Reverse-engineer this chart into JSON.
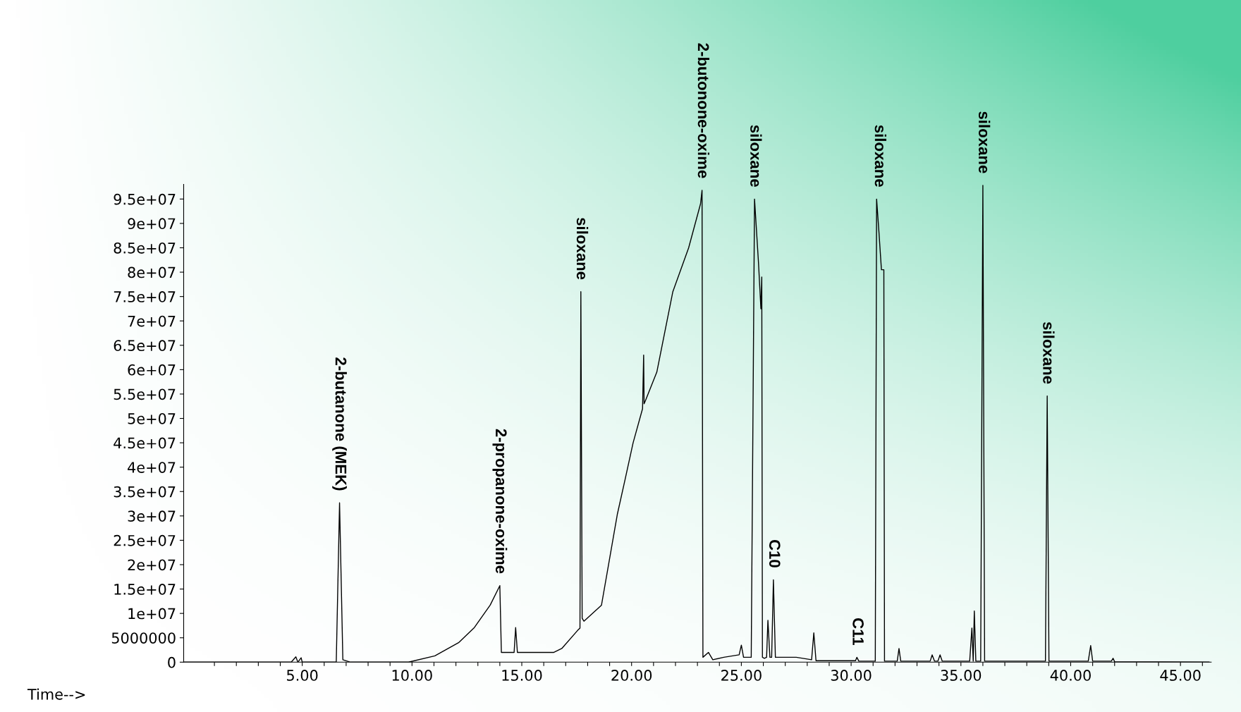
{
  "chart_data": {
    "type": "line",
    "xlabel": "Time-->",
    "x": [
      -0.4,
      4.5,
      4.71,
      4.8,
      4.95,
      5.0,
      5.1,
      6.55,
      6.7,
      6.85,
      7.2,
      9.84,
      11.04,
      12.12,
      12.84,
      13.56,
      14.0,
      14.07,
      14.5,
      14.65,
      14.72,
      14.8,
      16.46,
      16.82,
      17.54,
      17.65,
      17.69,
      17.75,
      17.83,
      18.63,
      18.99,
      19.35,
      19.71,
      20.07,
      20.5,
      20.55,
      20.57,
      20.62,
      21.15,
      21.88,
      22.6,
      23.14,
      23.21,
      23.25,
      23.5,
      23.7,
      24.2,
      24.9,
      25.0,
      25.1,
      25.45,
      25.6,
      25.78,
      25.89,
      25.93,
      25.96,
      26.05,
      26.15,
      26.21,
      26.3,
      26.38,
      26.46,
      26.55,
      27.5,
      28.2,
      28.3,
      28.4,
      30.2,
      30.26,
      30.35,
      31.1,
      31.16,
      31.27,
      31.38,
      31.49,
      31.52,
      31.6,
      32.1,
      32.18,
      32.26,
      33.6,
      33.69,
      33.8,
      33.95,
      34.05,
      34.15,
      35.4,
      35.5,
      35.56,
      35.61,
      35.68,
      35.9,
      36.0,
      36.08,
      38.85,
      38.93,
      39.01,
      40.8,
      40.91,
      41.0,
      41.85,
      41.93,
      42.0,
      46.3
    ],
    "values": [
      0,
      0,
      1100000,
      0,
      900000,
      0,
      0,
      0,
      32700000,
      500000,
      0,
      0,
      1300000,
      4000000,
      7100000,
      11700000,
      15700000,
      2000000,
      2000000,
      2000000,
      7100000,
      2000000,
      2000000,
      2800000,
      6500000,
      7000000,
      76000000,
      9000000,
      8400000,
      11700000,
      21000000,
      30300000,
      37600000,
      45000000,
      52000000,
      63000000,
      53000000,
      53500000,
      59500000,
      76000000,
      85000000,
      94000000,
      96800000,
      1000000,
      2000000,
      500000,
      1000000,
      1500000,
      3500000,
      1000000,
      1000000,
      95000000,
      82000000,
      72500000,
      79000000,
      1000000,
      800000,
      1000000,
      8600000,
      1000000,
      1000000,
      16900000,
      1000000,
      1000000,
      500000,
      6000000,
      300000,
      300000,
      1000000,
      200000,
      200000,
      95000000,
      88000000,
      80500000,
      80500000,
      200000,
      200000,
      200000,
      2800000,
      200000,
      200000,
      1500000,
      200000,
      200000,
      1500000,
      200000,
      200000,
      7000000,
      200000,
      10500000,
      200000,
      200000,
      97800000,
      200000,
      200000,
      54600000,
      200000,
      200000,
      3400000,
      200000,
      200000,
      800000,
      100000,
      0
    ],
    "color": "#000000",
    "marker": "none",
    "line_style": "solid",
    "grid": false,
    "legend": false,
    "xlim": [
      -0.4,
      46.4
    ],
    "ylim": [
      0,
      98000000
    ],
    "xticks": [
      {
        "value": 1,
        "label": null
      },
      {
        "value": 2,
        "label": null
      },
      {
        "value": 3,
        "label": null
      },
      {
        "value": 4,
        "label": null
      },
      {
        "value": 5,
        "label": "5.00"
      },
      {
        "value": 6,
        "label": null
      },
      {
        "value": 7,
        "label": null
      },
      {
        "value": 8,
        "label": null
      },
      {
        "value": 9,
        "label": null
      },
      {
        "value": 10,
        "label": "10.00"
      },
      {
        "value": 11,
        "label": null
      },
      {
        "value": 12,
        "label": null
      },
      {
        "value": 13,
        "label": null
      },
      {
        "value": 14,
        "label": null
      },
      {
        "value": 15,
        "label": "15.00"
      },
      {
        "value": 16,
        "label": null
      },
      {
        "value": 17,
        "label": null
      },
      {
        "value": 18,
        "label": null
      },
      {
        "value": 19,
        "label": null
      },
      {
        "value": 20,
        "label": "20.00"
      },
      {
        "value": 21,
        "label": null
      },
      {
        "value": 22,
        "label": null
      },
      {
        "value": 23,
        "label": null
      },
      {
        "value": 24,
        "label": null
      },
      {
        "value": 25,
        "label": "25.00"
      },
      {
        "value": 26,
        "label": null
      },
      {
        "value": 27,
        "label": null
      },
      {
        "value": 28,
        "label": null
      },
      {
        "value": 29,
        "label": null
      },
      {
        "value": 30,
        "label": "30.00"
      },
      {
        "value": 31,
        "label": null
      },
      {
        "value": 32,
        "label": null
      },
      {
        "value": 33,
        "label": null
      },
      {
        "value": 34,
        "label": null
      },
      {
        "value": 35,
        "label": "35.00"
      },
      {
        "value": 36,
        "label": null
      },
      {
        "value": 37,
        "label": null
      },
      {
        "value": 38,
        "label": null
      },
      {
        "value": 39,
        "label": null
      },
      {
        "value": 40,
        "label": "40.00"
      },
      {
        "value": 41,
        "label": null
      },
      {
        "value": 42,
        "label": null
      },
      {
        "value": 43,
        "label": null
      },
      {
        "value": 44,
        "label": null
      },
      {
        "value": 45,
        "label": "45.00"
      },
      {
        "value": 46,
        "label": null
      }
    ],
    "yticks": [
      0,
      5000000,
      {
        "value": 10000000,
        "label": "1e+07"
      },
      {
        "value": 15000000,
        "label": "1.5e+07"
      },
      {
        "value": 20000000,
        "label": "2e+07"
      },
      {
        "value": 25000000,
        "label": "2.5e+07"
      },
      {
        "value": 30000000,
        "label": "3e+07"
      },
      {
        "value": 35000000,
        "label": "3.5e+07"
      },
      {
        "value": 40000000,
        "label": "4e+07"
      },
      {
        "value": 45000000,
        "label": "4.5e+07"
      },
      {
        "value": 50000000,
        "label": "5e+07"
      },
      {
        "value": 55000000,
        "label": "5.5e+07"
      },
      {
        "value": 60000000,
        "label": "6e+07"
      },
      {
        "value": 65000000,
        "label": "6.5e+07"
      },
      {
        "value": 70000000,
        "label": "7e+07"
      },
      {
        "value": 75000000,
        "label": "7.5e+07"
      },
      {
        "value": 80000000,
        "label": "8e+07"
      },
      {
        "value": 85000000,
        "label": "8.5e+07"
      },
      {
        "value": 90000000,
        "label": "9e+07"
      },
      {
        "value": 95000000,
        "label": "9.5e+07"
      }
    ],
    "annotations": [
      {
        "text": "2-butanone (MEK)",
        "x": 6.7,
        "y": 32700000
      },
      {
        "text": "2-propanone-oxime",
        "x": 14.0,
        "y": 15700000
      },
      {
        "text": "siloxane",
        "x": 17.69,
        "y": 76000000
      },
      {
        "text": "2-butonone-oxime",
        "x": 23.21,
        "y": 96800000
      },
      {
        "text": "siloxane",
        "x": 25.6,
        "y": 95000000
      },
      {
        "text": "C10",
        "x": 26.46,
        "y": 16900000
      },
      {
        "text": "C11",
        "x": 30.26,
        "y": 1000000
      },
      {
        "text": "siloxane",
        "x": 31.27,
        "y": 95000000
      },
      {
        "text": "siloxane",
        "x": 36.0,
        "y": 97800000
      },
      {
        "text": "siloxane",
        "x": 38.93,
        "y": 54600000
      }
    ]
  }
}
